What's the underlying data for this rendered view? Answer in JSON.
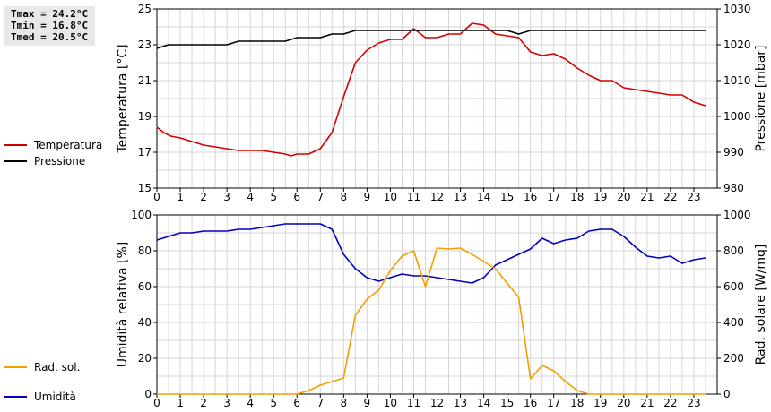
{
  "stats": {
    "tmax": "Tmax = 24.2°C",
    "tmin": "Tmin = 16.8°C",
    "tmed": "Tmed = 20.5°C"
  },
  "colors": {
    "temp": "#d40000",
    "press": "#000000",
    "hum": "#0000c0",
    "rad": "#f0a000",
    "grid": "#d6d6d6"
  },
  "chart_data": [
    {
      "type": "line",
      "ylabel": "Temperatura [°C]",
      "y2label": "Pressione [mbar]",
      "xlim": [
        0,
        24
      ],
      "xticks": [
        0,
        1,
        2,
        3,
        4,
        5,
        6,
        7,
        8,
        9,
        10,
        11,
        12,
        13,
        14,
        15,
        16,
        17,
        18,
        19,
        20,
        21,
        22,
        23
      ],
      "ylim": [
        15,
        25
      ],
      "yticks": [
        15,
        17,
        19,
        21,
        23,
        25
      ],
      "y2lim": [
        980,
        1030
      ],
      "y2ticks": [
        980,
        990,
        1000,
        1010,
        1020,
        1030
      ],
      "grid": true,
      "series": [
        {
          "name": "Temperatura",
          "axis": "left",
          "color": "#d40000",
          "points": [
            [
              0,
              18.4
            ],
            [
              0.3,
              18.1
            ],
            [
              0.6,
              17.9
            ],
            [
              1,
              17.8
            ],
            [
              1.5,
              17.6
            ],
            [
              2,
              17.4
            ],
            [
              2.5,
              17.3
            ],
            [
              3,
              17.2
            ],
            [
              3.5,
              17.1
            ],
            [
              4,
              17.1
            ],
            [
              4.5,
              17.1
            ],
            [
              5,
              17.0
            ],
            [
              5.5,
              16.9
            ],
            [
              5.75,
              16.8
            ],
            [
              6,
              16.9
            ],
            [
              6.5,
              16.9
            ],
            [
              7,
              17.2
            ],
            [
              7.5,
              18.1
            ],
            [
              8,
              20.1
            ],
            [
              8.5,
              22.0
            ],
            [
              9,
              22.7
            ],
            [
              9.5,
              23.1
            ],
            [
              10,
              23.3
            ],
            [
              10.5,
              23.3
            ],
            [
              11,
              23.9
            ],
            [
              11.5,
              23.4
            ],
            [
              12,
              23.4
            ],
            [
              12.5,
              23.6
            ],
            [
              13,
              23.6
            ],
            [
              13.5,
              24.2
            ],
            [
              14,
              24.1
            ],
            [
              14.5,
              23.6
            ],
            [
              15,
              23.5
            ],
            [
              15.5,
              23.4
            ],
            [
              16,
              22.6
            ],
            [
              16.5,
              22.4
            ],
            [
              17,
              22.5
            ],
            [
              17.5,
              22.2
            ],
            [
              18,
              21.7
            ],
            [
              18.5,
              21.3
            ],
            [
              19,
              21.0
            ],
            [
              19.5,
              21.0
            ],
            [
              20,
              20.6
            ],
            [
              20.5,
              20.5
            ],
            [
              21,
              20.4
            ],
            [
              21.5,
              20.3
            ],
            [
              22,
              20.2
            ],
            [
              22.5,
              20.2
            ],
            [
              23,
              19.8
            ],
            [
              23.5,
              19.6
            ]
          ]
        },
        {
          "name": "Pressione",
          "axis": "right",
          "color": "#000000",
          "points": [
            [
              0,
              1019
            ],
            [
              0.5,
              1020
            ],
            [
              1,
              1020
            ],
            [
              2,
              1020
            ],
            [
              3,
              1020
            ],
            [
              3.5,
              1021
            ],
            [
              4,
              1021
            ],
            [
              5,
              1021
            ],
            [
              5.5,
              1021
            ],
            [
              6,
              1022
            ],
            [
              6.5,
              1022
            ],
            [
              7,
              1022
            ],
            [
              7.5,
              1023
            ],
            [
              8,
              1023
            ],
            [
              8.5,
              1024
            ],
            [
              9,
              1024
            ],
            [
              10,
              1024
            ],
            [
              11,
              1024
            ],
            [
              12,
              1024
            ],
            [
              13,
              1024
            ],
            [
              14,
              1024
            ],
            [
              15,
              1024
            ],
            [
              15.5,
              1023
            ],
            [
              16,
              1024
            ],
            [
              17,
              1024
            ],
            [
              18,
              1024
            ],
            [
              19,
              1024
            ],
            [
              20,
              1024
            ],
            [
              21,
              1024
            ],
            [
              22,
              1024
            ],
            [
              23,
              1024
            ],
            [
              23.5,
              1024
            ]
          ]
        }
      ]
    },
    {
      "type": "line",
      "ylabel": "Umidità relativa [%]",
      "y2label": "Rad. solare [W/mq]",
      "xlim": [
        0,
        24
      ],
      "xticks": [
        0,
        1,
        2,
        3,
        4,
        5,
        6,
        7,
        8,
        9,
        10,
        11,
        12,
        13,
        14,
        15,
        16,
        17,
        18,
        19,
        20,
        21,
        22,
        23
      ],
      "ylim": [
        0,
        100
      ],
      "yticks": [
        0,
        20,
        40,
        60,
        80,
        100
      ],
      "y2lim": [
        0,
        1000
      ],
      "y2ticks": [
        0,
        200,
        400,
        600,
        800,
        1000
      ],
      "grid": true,
      "series": [
        {
          "name": "Umidità",
          "axis": "left",
          "color": "#0000c0",
          "points": [
            [
              0,
              86
            ],
            [
              0.5,
              88
            ],
            [
              1,
              90
            ],
            [
              1.5,
              90
            ],
            [
              2,
              91
            ],
            [
              2.5,
              91
            ],
            [
              3,
              91
            ],
            [
              3.5,
              92
            ],
            [
              4,
              92
            ],
            [
              4.5,
              93
            ],
            [
              5,
              94
            ],
            [
              5.5,
              95
            ],
            [
              6,
              95
            ],
            [
              6.5,
              95
            ],
            [
              7,
              95
            ],
            [
              7.5,
              92
            ],
            [
              8,
              78
            ],
            [
              8.5,
              70
            ],
            [
              9,
              65
            ],
            [
              9.5,
              63
            ],
            [
              10,
              65
            ],
            [
              10.5,
              67
            ],
            [
              11,
              66
            ],
            [
              11.5,
              66
            ],
            [
              12,
              65
            ],
            [
              12.5,
              64
            ],
            [
              13,
              63
            ],
            [
              13.5,
              62
            ],
            [
              14,
              65
            ],
            [
              14.5,
              72
            ],
            [
              15,
              75
            ],
            [
              15.5,
              78
            ],
            [
              16,
              81
            ],
            [
              16.5,
              87
            ],
            [
              17,
              84
            ],
            [
              17.5,
              86
            ],
            [
              18,
              87
            ],
            [
              18.5,
              91
            ],
            [
              19,
              92
            ],
            [
              19.5,
              92
            ],
            [
              20,
              88
            ],
            [
              20.5,
              82
            ],
            [
              21,
              77
            ],
            [
              21.5,
              76
            ],
            [
              22,
              77
            ],
            [
              22.5,
              73
            ],
            [
              23,
              75
            ],
            [
              23.5,
              76
            ]
          ]
        },
        {
          "name": "Rad. sol.",
          "axis": "right",
          "color": "#f0a000",
          "points": [
            [
              0,
              0
            ],
            [
              1,
              0
            ],
            [
              2,
              0
            ],
            [
              3,
              0
            ],
            [
              4,
              0
            ],
            [
              5,
              0
            ],
            [
              6,
              0
            ],
            [
              6.5,
              20
            ],
            [
              7,
              50
            ],
            [
              7.5,
              70
            ],
            [
              8,
              90
            ],
            [
              8.5,
              440
            ],
            [
              9,
              530
            ],
            [
              9.5,
              580
            ],
            [
              10,
              690
            ],
            [
              10.5,
              770
            ],
            [
              11,
              800
            ],
            [
              11.5,
              600
            ],
            [
              12,
              815
            ],
            [
              12.5,
              810
            ],
            [
              13,
              815
            ],
            [
              13.5,
              780
            ],
            [
              14,
              740
            ],
            [
              14.5,
              700
            ],
            [
              15,
              620
            ],
            [
              15.5,
              540
            ],
            [
              16,
              85
            ],
            [
              16.5,
              160
            ],
            [
              17,
              130
            ],
            [
              17.5,
              70
            ],
            [
              18,
              20
            ],
            [
              18.5,
              0
            ],
            [
              19,
              0
            ],
            [
              20,
              0
            ],
            [
              21,
              0
            ],
            [
              22,
              0
            ],
            [
              23,
              0
            ],
            [
              23.5,
              0
            ]
          ]
        }
      ]
    }
  ]
}
